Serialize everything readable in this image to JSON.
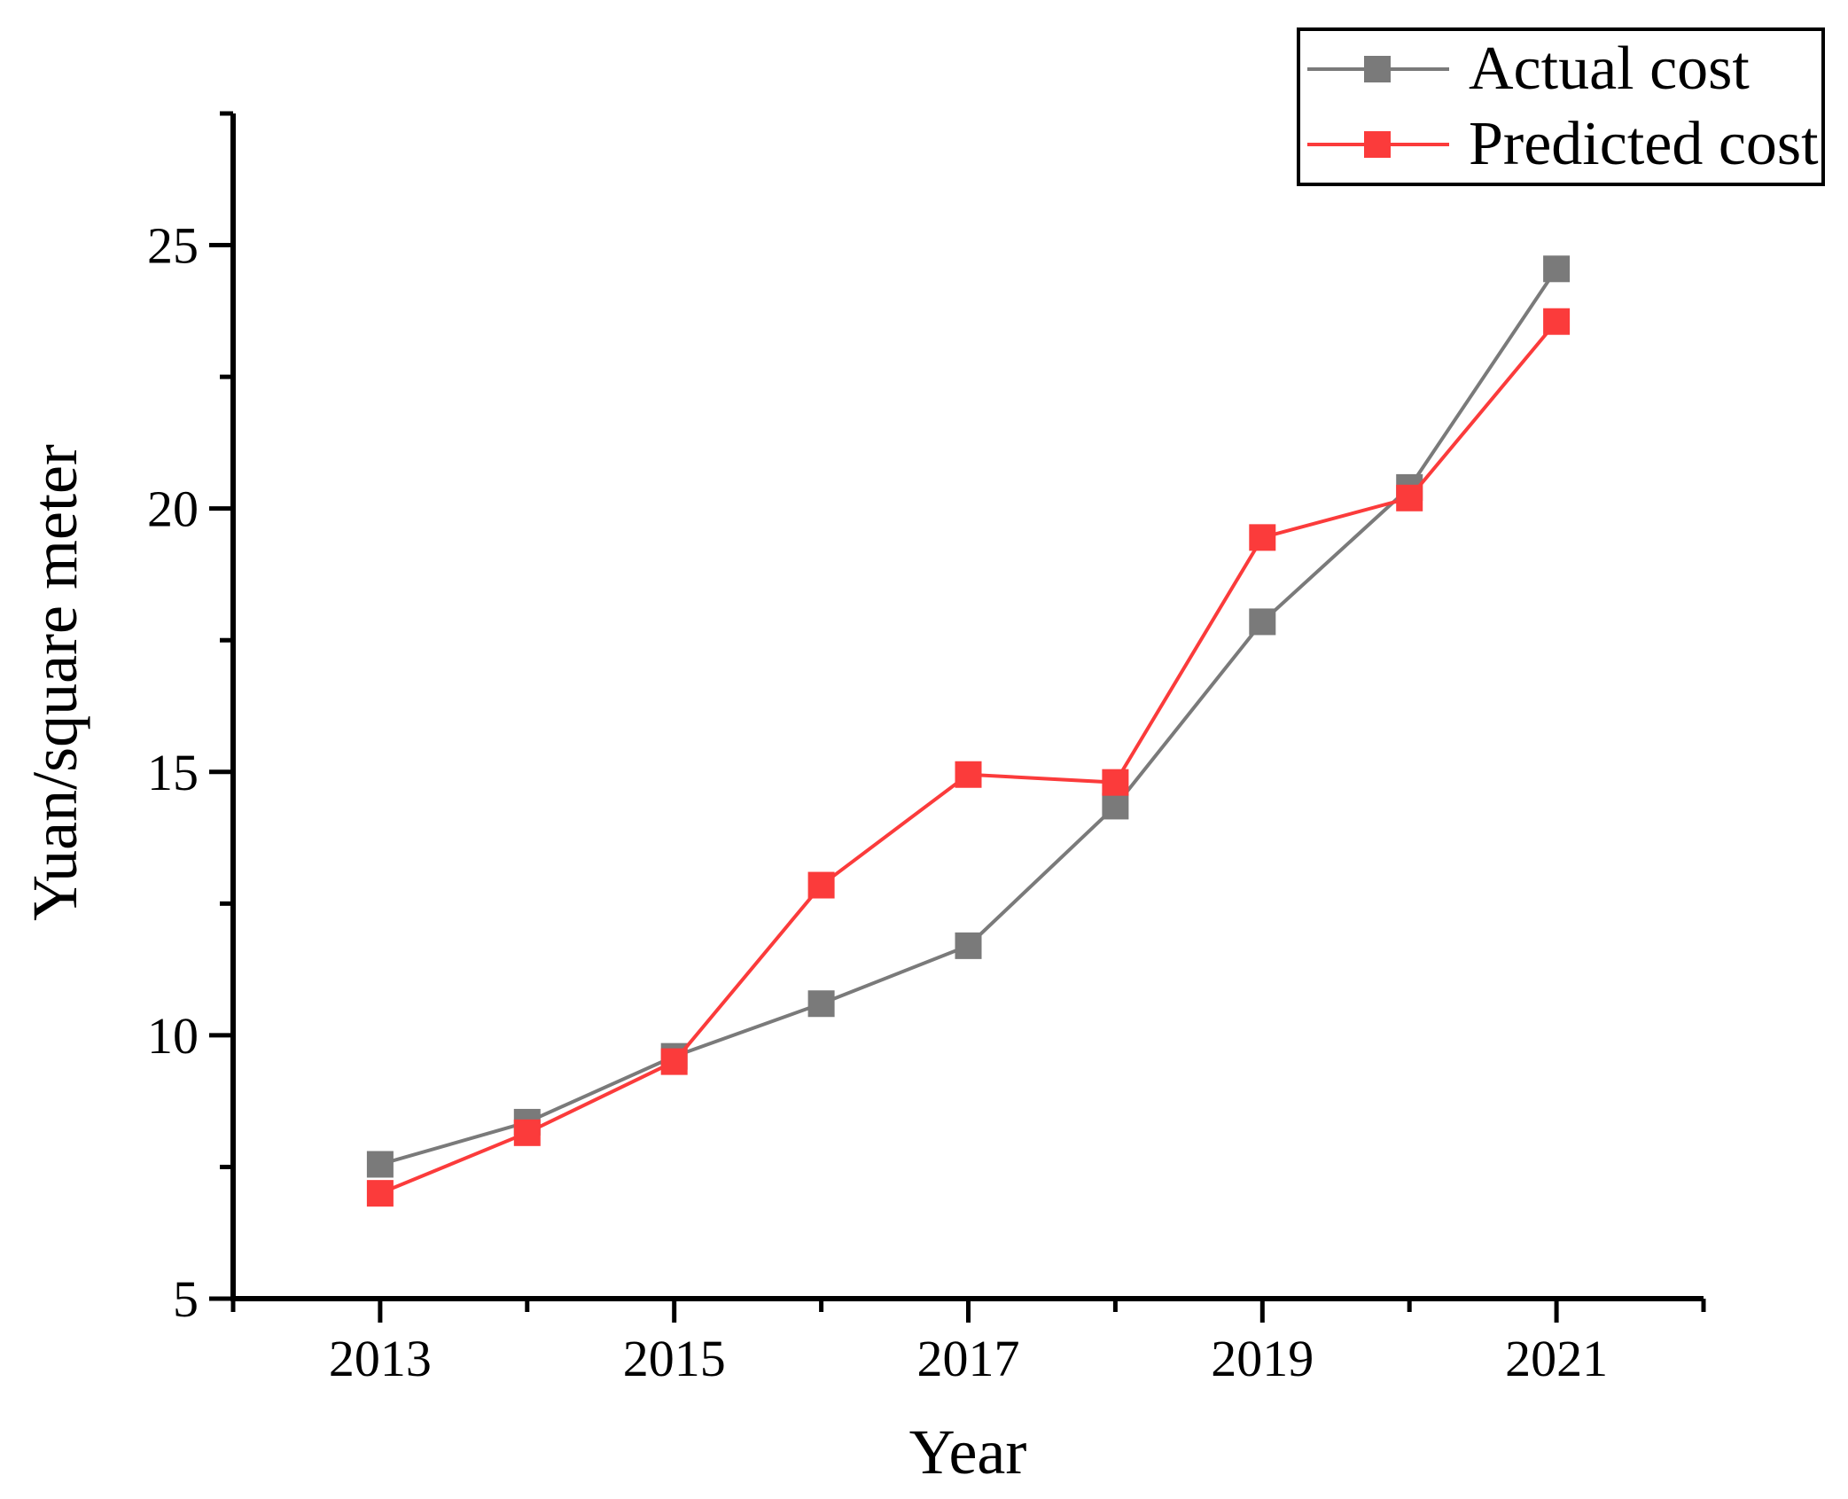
{
  "figure": {
    "background": "#ffffff",
    "axis_color": "#000000",
    "text_color": "#000000"
  },
  "legend": {
    "position": "top-right",
    "entries": [
      {
        "label": "Actual cost",
        "color": "#7a7a7a",
        "marker": "square"
      },
      {
        "label": "Predicted cost",
        "color": "#fb3b3b",
        "marker": "square"
      }
    ]
  },
  "chart_data": {
    "type": "line",
    "x": [
      2013,
      2014,
      2015,
      2016,
      2017,
      2018,
      2019,
      2020,
      2021
    ],
    "series": [
      {
        "name": "Actual cost",
        "color": "#7a7a7a",
        "marker": "square",
        "values": [
          7.55,
          8.35,
          9.6,
          10.6,
          11.7,
          14.35,
          17.85,
          20.4,
          24.55
        ]
      },
      {
        "name": "Predicted cost",
        "color": "#fb3b3b",
        "marker": "square",
        "values": [
          7.0,
          8.15,
          9.5,
          12.85,
          14.95,
          14.8,
          19.45,
          20.2,
          23.55
        ]
      }
    ],
    "title": "",
    "xlabel": "Year",
    "ylabel": "Yuan/square meter",
    "xlim": [
      2012,
      2022
    ],
    "ylim": [
      5,
      27.5
    ],
    "x_major_ticks": [
      2013,
      2015,
      2017,
      2019,
      2021
    ],
    "x_tick_labels": [
      "2013",
      "2015",
      "2017",
      "2019",
      "2021"
    ],
    "x_minor_ticks": [
      2012,
      2014,
      2016,
      2018,
      2020,
      2022
    ],
    "y_major_ticks": [
      5,
      10,
      15,
      20,
      25
    ],
    "y_tick_labels": [
      "5",
      "10",
      "15",
      "20",
      "25"
    ],
    "y_minor_ticks": [
      7.5,
      12.5,
      17.5,
      22.5,
      27.5
    ],
    "grid": false,
    "legend_position": "top-right"
  }
}
